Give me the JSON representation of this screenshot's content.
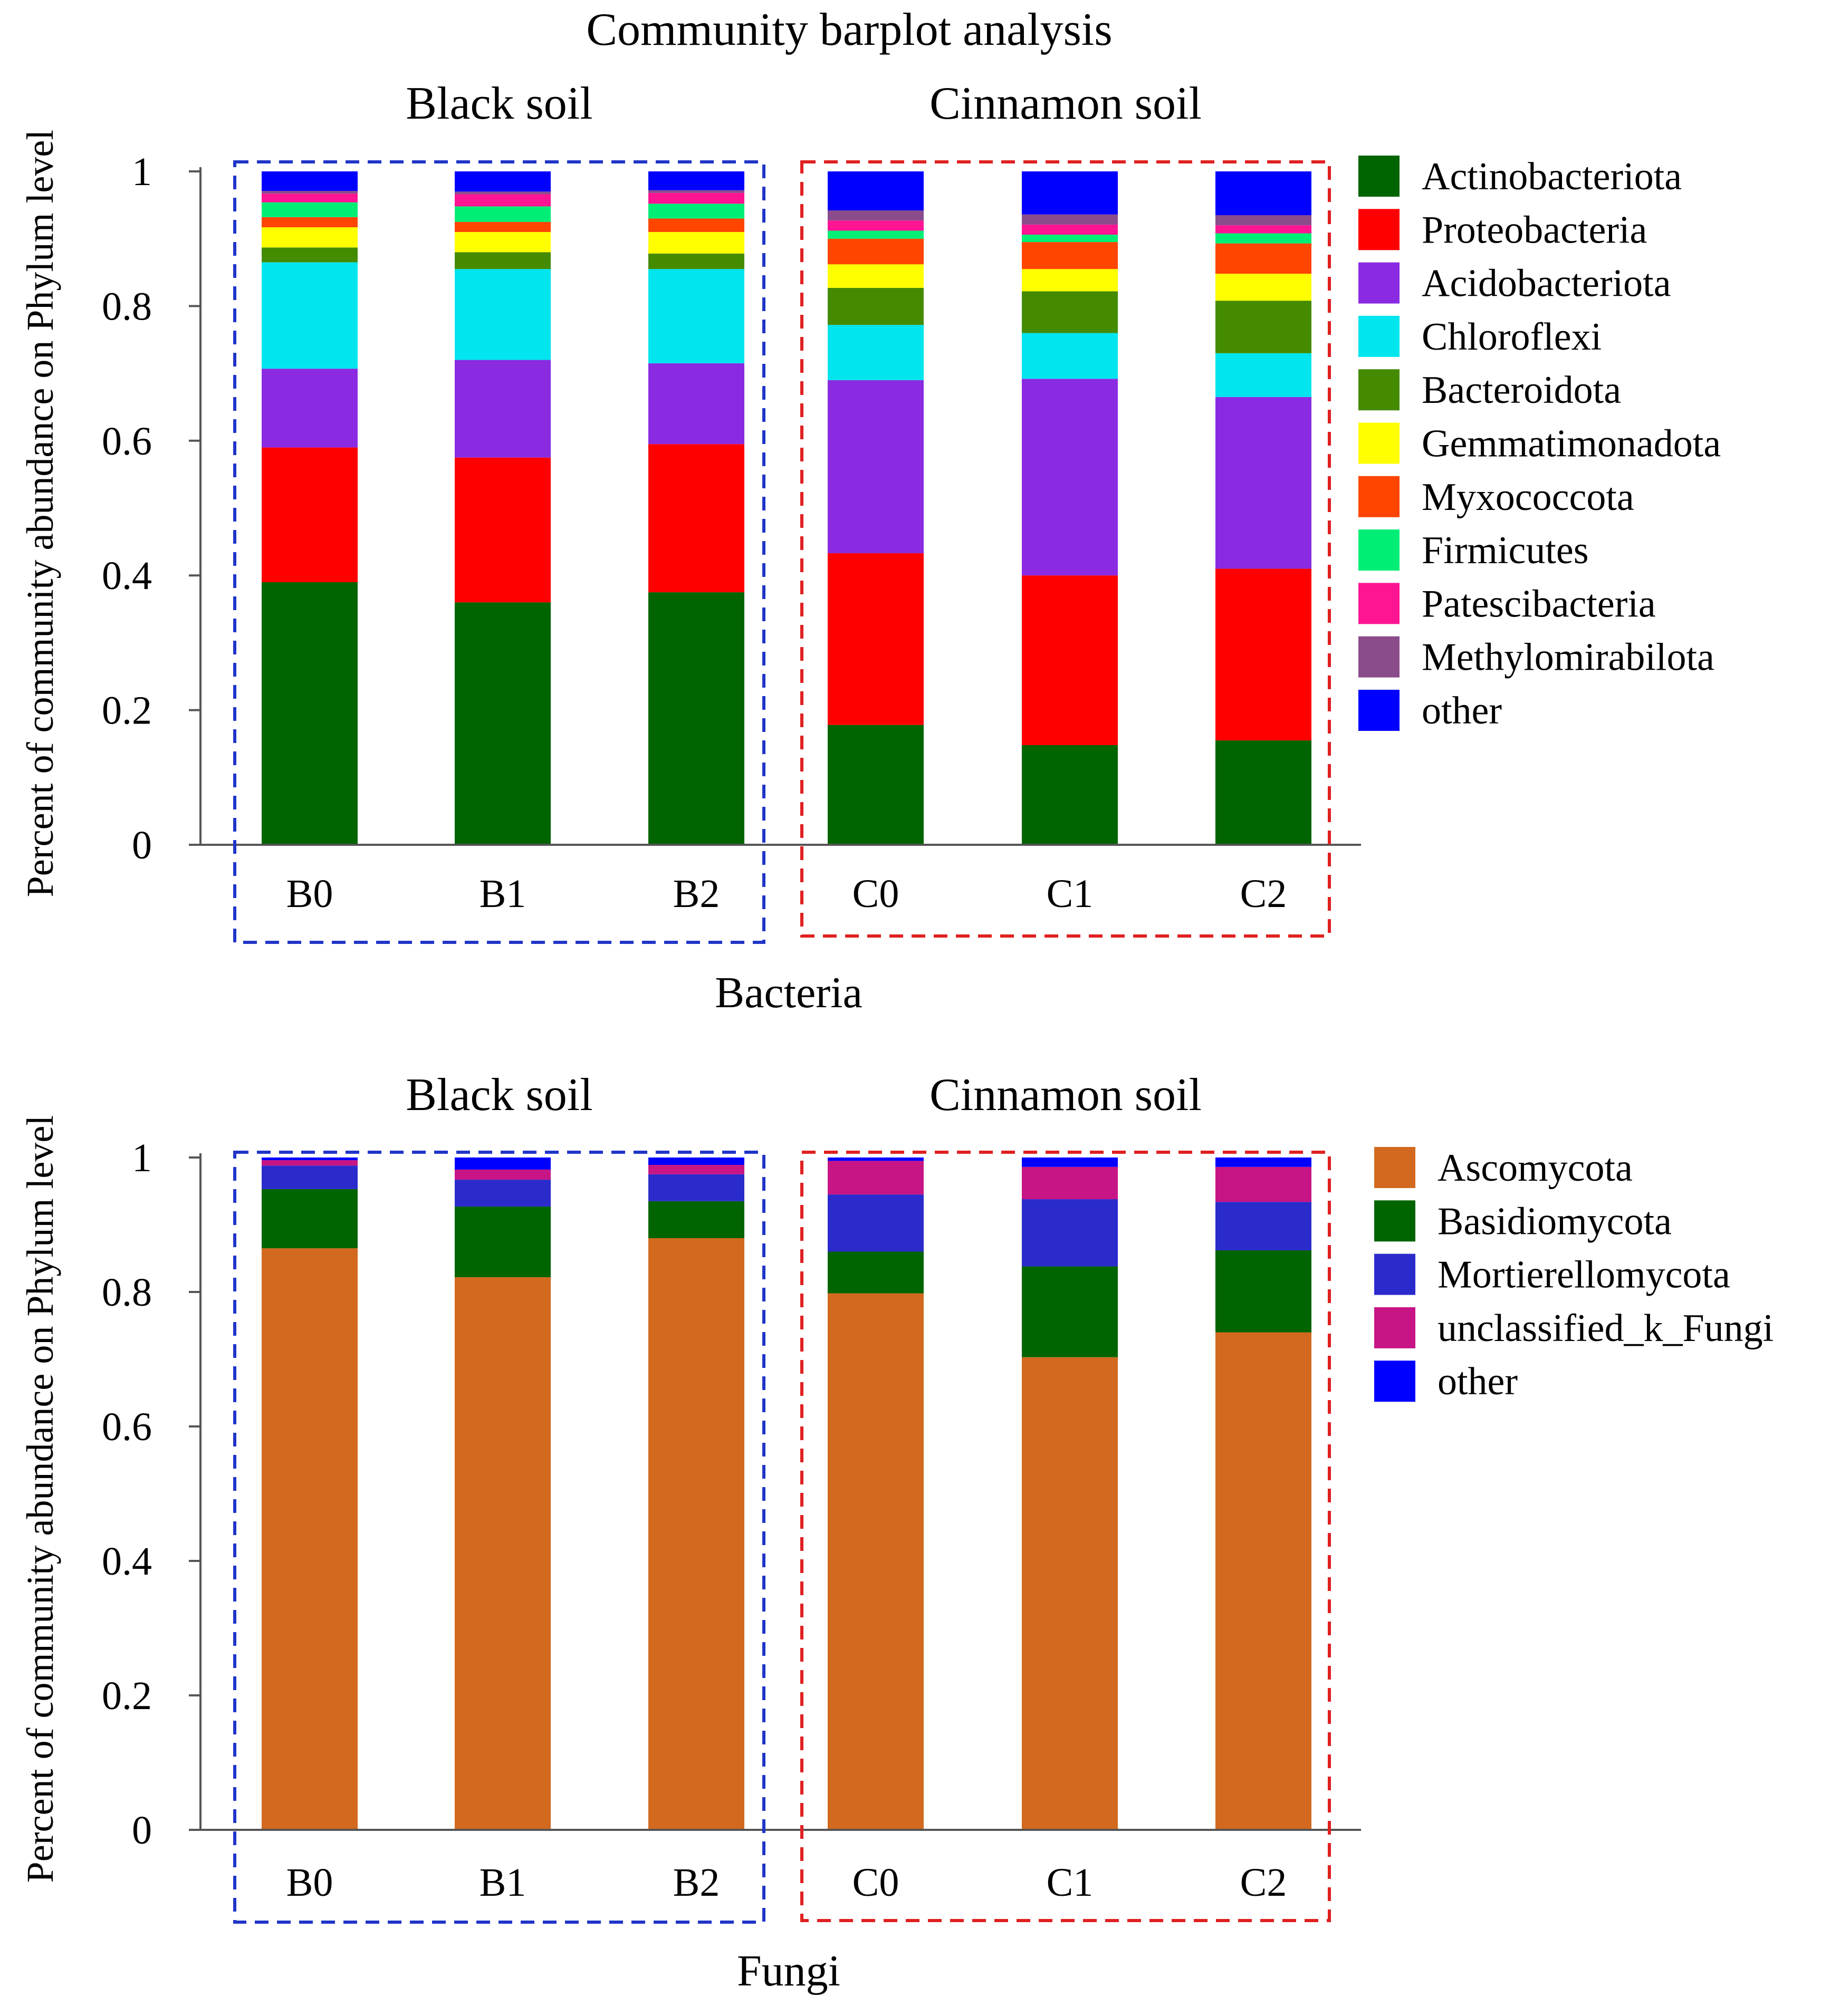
{
  "figure_title": "Community barplot analysis",
  "chart_data": [
    {
      "type": "bar",
      "stacked": true,
      "title": "Bacteria",
      "xlabel": "Bacteria",
      "ylabel": "Percent of community abundance on Phylum level",
      "ylim": [
        0,
        1
      ],
      "yticks": [
        "0",
        "0.2",
        "0.4",
        "0.6",
        "0.8",
        "1"
      ],
      "ytick_values": [
        0,
        0.2,
        0.4,
        0.6,
        0.8,
        1
      ],
      "categories": [
        "B0",
        "B1",
        "B2",
        "C0",
        "C1",
        "C2"
      ],
      "groups": [
        {
          "label": "Black soil",
          "color": "#2035c8",
          "categories": [
            "B0",
            "B1",
            "B2"
          ]
        },
        {
          "label": "Cinnamon soil",
          "color": "#e02020",
          "categories": [
            "C0",
            "C1",
            "C2"
          ]
        }
      ],
      "legend_position": "right",
      "series": [
        {
          "name": "Actinobacteriota",
          "color": "#006400",
          "values": [
            0.39,
            0.36,
            0.375,
            0.178,
            0.148,
            0.155
          ]
        },
        {
          "name": "Proteobacteria",
          "color": "#ff0000",
          "values": [
            0.2,
            0.215,
            0.22,
            0.255,
            0.252,
            0.255
          ]
        },
        {
          "name": "Acidobacteriota",
          "color": "#8a2be2",
          "values": [
            0.117,
            0.145,
            0.12,
            0.257,
            0.292,
            0.255
          ]
        },
        {
          "name": "Chloroflexi",
          "color": "#00e5ee",
          "values": [
            0.158,
            0.135,
            0.14,
            0.082,
            0.068,
            0.065
          ]
        },
        {
          "name": "Bacteroidota",
          "color": "#458b00",
          "values": [
            0.022,
            0.025,
            0.023,
            0.055,
            0.062,
            0.078
          ]
        },
        {
          "name": "Gemmatimonadota",
          "color": "#ffff00",
          "values": [
            0.03,
            0.03,
            0.032,
            0.035,
            0.033,
            0.04
          ]
        },
        {
          "name": "Myxococcota",
          "color": "#ff4500",
          "values": [
            0.015,
            0.015,
            0.02,
            0.038,
            0.04,
            0.045
          ]
        },
        {
          "name": "Firmicutes",
          "color": "#00ee76",
          "values": [
            0.022,
            0.023,
            0.022,
            0.012,
            0.011,
            0.015
          ]
        },
        {
          "name": "Patescibacteria",
          "color": "#ff1493",
          "values": [
            0.013,
            0.018,
            0.016,
            0.015,
            0.015,
            0.012
          ]
        },
        {
          "name": "Methylomirabilota",
          "color": "#8b4c8b",
          "values": [
            0.004,
            0.004,
            0.004,
            0.015,
            0.015,
            0.015
          ]
        },
        {
          "name": "other",
          "color": "#0000ff",
          "values": [
            0.029,
            0.03,
            0.028,
            0.058,
            0.064,
            0.065
          ]
        }
      ]
    },
    {
      "type": "bar",
      "stacked": true,
      "title": "Fungi",
      "xlabel": "Fungi",
      "ylabel": "Percent of community abundance on Phylum level",
      "ylim": [
        0,
        1
      ],
      "yticks": [
        "0",
        "0.2",
        "0.4",
        "0.6",
        "0.8",
        "1"
      ],
      "ytick_values": [
        0,
        0.2,
        0.4,
        0.6,
        0.8,
        1
      ],
      "categories": [
        "B0",
        "B1",
        "B2",
        "C0",
        "C1",
        "C2"
      ],
      "groups": [
        {
          "label": "Black soil",
          "color": "#2035c8",
          "categories": [
            "B0",
            "B1",
            "B2"
          ]
        },
        {
          "label": "Cinnamon soil",
          "color": "#e02020",
          "categories": [
            "C0",
            "C1",
            "C2"
          ]
        }
      ],
      "legend_position": "right",
      "series": [
        {
          "name": "Ascomycota",
          "color": "#d2691e",
          "values": [
            0.865,
            0.822,
            0.88,
            0.798,
            0.703,
            0.74
          ]
        },
        {
          "name": "Basidiomycota",
          "color": "#006400",
          "values": [
            0.088,
            0.105,
            0.055,
            0.062,
            0.135,
            0.122
          ]
        },
        {
          "name": "Mortierellomycota",
          "color": "#2b2bcc",
          "values": [
            0.035,
            0.04,
            0.04,
            0.085,
            0.1,
            0.072
          ]
        },
        {
          "name": "unclassified_k_Fungi",
          "color": "#c71585",
          "values": [
            0.008,
            0.015,
            0.014,
            0.05,
            0.048,
            0.052
          ]
        },
        {
          "name": "other",
          "color": "#0000ff",
          "values": [
            0.004,
            0.018,
            0.011,
            0.005,
            0.014,
            0.014
          ]
        }
      ]
    }
  ]
}
